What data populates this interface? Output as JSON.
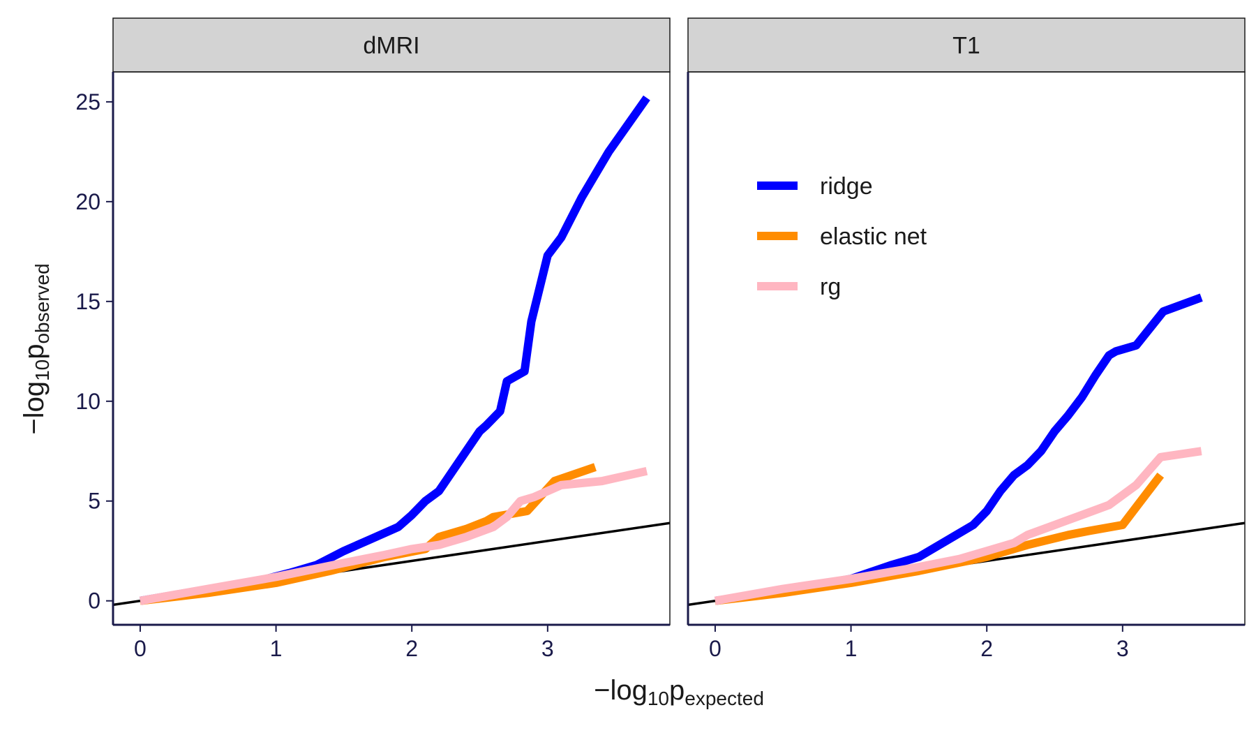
{
  "chart_data": {
    "type": "line",
    "xlabel": {
      "prefix": "−log",
      "sub": "10",
      "main": "p",
      "subscript": "expected"
    },
    "ylabel": {
      "prefix": "−log",
      "sub": "10",
      "main": "p",
      "subscript": "observed"
    },
    "xlim": [
      -0.2,
      3.9
    ],
    "ylim": [
      -1.2,
      26.5
    ],
    "xticks": [
      0,
      1,
      2,
      3
    ],
    "yticks": [
      0,
      5,
      10,
      15,
      20,
      25
    ],
    "grid": false,
    "legend_position": "top-left of right panel",
    "colors": {
      "ridge": "#0000ff",
      "elastic net": "#ff8c00",
      "rg": "#ffb6c1",
      "reference": "#000000",
      "strip": "#d3d3d3"
    },
    "reference_line": {
      "slope": 1,
      "intercept": 0
    },
    "legend": [
      "ridge",
      "elastic net",
      "rg"
    ],
    "panels": [
      {
        "title": "dMRI",
        "series": [
          {
            "name": "ridge",
            "x": [
              0,
              0.3,
              0.6,
              0.9,
              1.1,
              1.3,
              1.5,
              1.7,
              1.9,
              2.0,
              2.1,
              2.2,
              2.3,
              2.4,
              2.5,
              2.55,
              2.65,
              2.7,
              2.83,
              2.88,
              3.0,
              3.1,
              3.25,
              3.45,
              3.73
            ],
            "y": [
              0,
              0.35,
              0.7,
              1.05,
              1.4,
              1.8,
              2.5,
              3.1,
              3.7,
              4.3,
              5.0,
              5.5,
              6.5,
              7.5,
              8.5,
              8.8,
              9.5,
              11,
              11.5,
              14,
              17.3,
              18.2,
              20.2,
              22.5,
              25.2
            ]
          },
          {
            "name": "elastic net",
            "x": [
              0,
              0.5,
              1.0,
              1.4,
              1.8,
              2.1,
              2.2,
              2.4,
              2.55,
              2.6,
              2.85,
              3.05,
              3.35
            ],
            "y": [
              0,
              0.4,
              0.9,
              1.5,
              2.2,
              2.6,
              3.2,
              3.6,
              4.0,
              4.2,
              4.5,
              6.0,
              6.7
            ]
          },
          {
            "name": "rg",
            "x": [
              0,
              0.5,
              1.0,
              1.5,
              1.8,
              2.0,
              2.2,
              2.4,
              2.6,
              2.7,
              2.8,
              2.9,
              3.1,
              3.4,
              3.73
            ],
            "y": [
              0,
              0.6,
              1.2,
              1.9,
              2.3,
              2.6,
              2.8,
              3.2,
              3.7,
              4.2,
              5.0,
              5.2,
              5.8,
              6.0,
              6.5
            ]
          }
        ]
      },
      {
        "title": "T1",
        "series": [
          {
            "name": "ridge",
            "x": [
              0,
              0.5,
              1.0,
              1.3,
              1.5,
              1.7,
              1.9,
              2.0,
              2.1,
              2.2,
              2.3,
              2.4,
              2.5,
              2.6,
              2.7,
              2.8,
              2.9,
              2.95,
              3.1,
              3.3,
              3.58
            ],
            "y": [
              0,
              0.5,
              1.1,
              1.8,
              2.2,
              3.0,
              3.8,
              4.5,
              5.5,
              6.3,
              6.8,
              7.5,
              8.5,
              9.3,
              10.2,
              11.3,
              12.3,
              12.5,
              12.8,
              14.5,
              15.2
            ]
          },
          {
            "name": "elastic net",
            "x": [
              0,
              0.5,
              1.0,
              1.5,
              2.0,
              2.3,
              2.6,
              2.75,
              3.0,
              3.28
            ],
            "y": [
              0,
              0.4,
              0.9,
              1.5,
              2.2,
              2.8,
              3.3,
              3.5,
              3.8,
              6.3
            ]
          },
          {
            "name": "rg",
            "x": [
              0,
              0.5,
              1.0,
              1.5,
              1.8,
              2.0,
              2.2,
              2.3,
              2.5,
              2.7,
              2.9,
              3.0,
              3.1,
              3.28,
              3.58
            ],
            "y": [
              0,
              0.6,
              1.1,
              1.7,
              2.1,
              2.5,
              2.9,
              3.3,
              3.8,
              4.3,
              4.8,
              5.3,
              5.8,
              7.2,
              7.5
            ]
          }
        ]
      }
    ]
  }
}
